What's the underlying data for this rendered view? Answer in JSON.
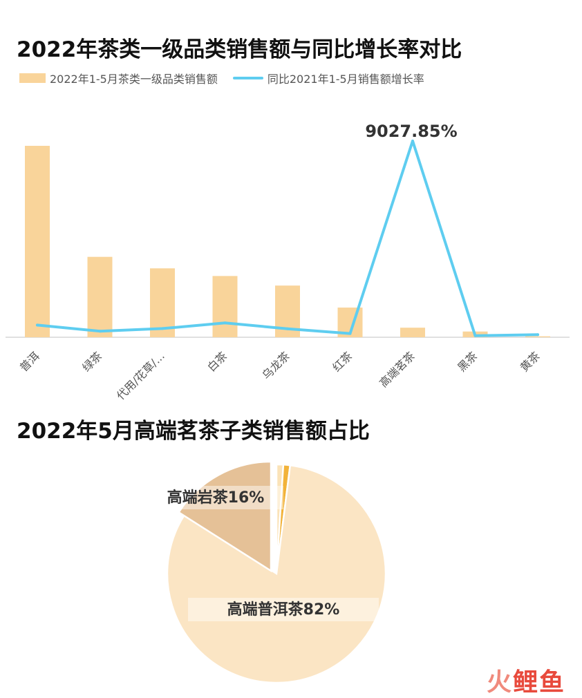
{
  "chart_data": [
    {
      "type": "bar",
      "title": "2022年茶类一级品类销售额与同比增长率对比",
      "categories": [
        "普洱",
        "绿茶",
        "代用/花草/...",
        "白茶",
        "乌龙茶",
        "红茶",
        "高端茗茶",
        "黑茶",
        "黄茶"
      ],
      "series": [
        {
          "name": "2022年1-5月茶类一级品类销售额",
          "kind": "bar",
          "color": "#f9d49a",
          "values": [
            100,
            42,
            36,
            32,
            27,
            15.5,
            5,
            3,
            0.5
          ]
        },
        {
          "name": "同比2021年1-5月销售额增长率",
          "kind": "line",
          "color": "#5ecdf0",
          "values": [
            560,
            280,
            400,
            660,
            390,
            170,
            9027.85,
            70,
            120
          ]
        }
      ],
      "annotations": [
        "9027.85%"
      ],
      "legend_position": "top-left",
      "grid": false
    },
    {
      "type": "pie",
      "title": "2022年5月高端茗茶子类销售额占比",
      "slices": [
        {
          "name": "高端普洱茶",
          "value": 82,
          "label": "高端普洱茶82%",
          "color": "#fbe5c4"
        },
        {
          "name": "高端岩茶",
          "value": 16,
          "label": "高端岩茶16%",
          "color": "#e5c197"
        },
        {
          "name": "",
          "value": 1,
          "label": "",
          "color": "#f2b33a"
        },
        {
          "name": "",
          "value": 1,
          "label": "",
          "color": "#fbe3b8"
        }
      ]
    }
  ],
  "watermark": {
    "part1": "火",
    "part2": "鲤鱼"
  }
}
